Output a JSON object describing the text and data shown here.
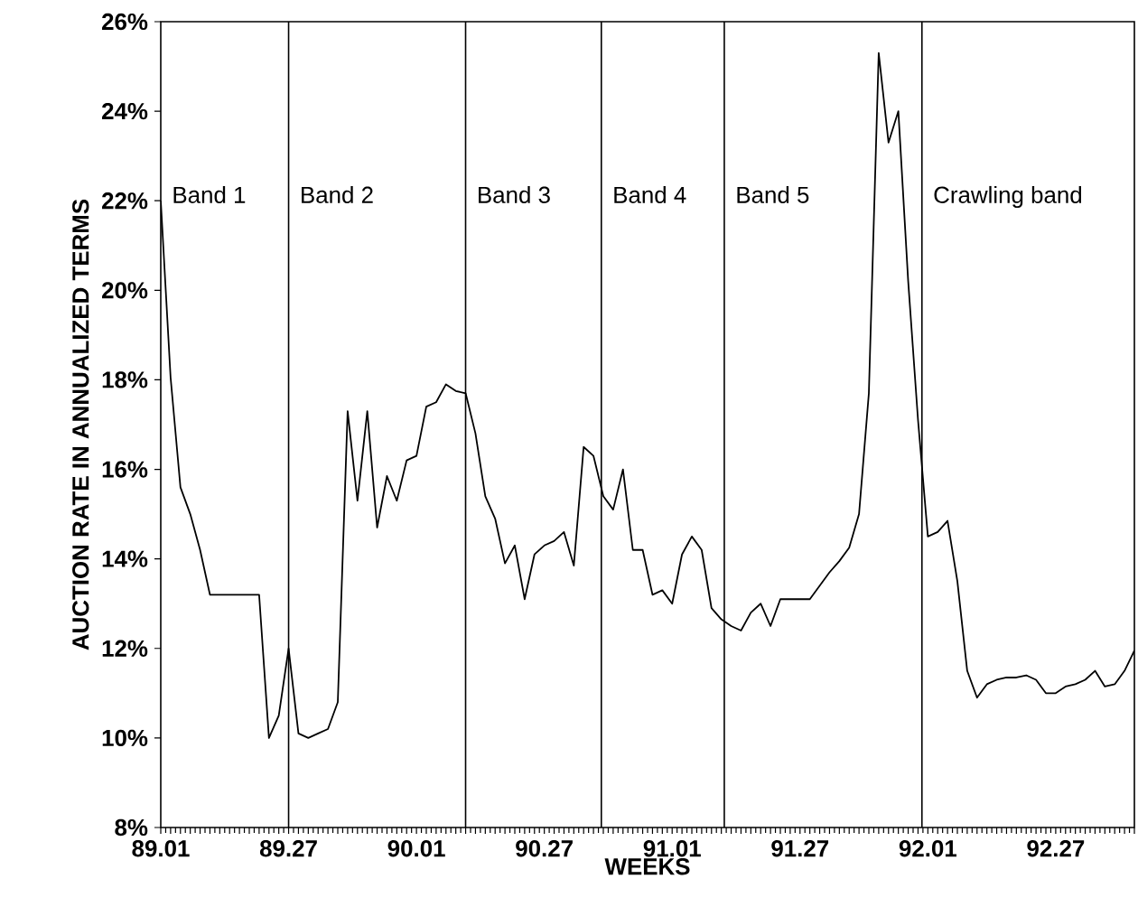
{
  "chart_data": {
    "type": "line",
    "xlabel": "WEEKS",
    "ylabel": "AUCTION RATE IN ANNUALIZED TERMS",
    "categories": [
      "89.01",
      null,
      null,
      null,
      null,
      null,
      null,
      null,
      null,
      null,
      null,
      null,
      null,
      "89.27",
      null,
      null,
      null,
      null,
      null,
      null,
      null,
      null,
      null,
      null,
      null,
      null,
      "90.01",
      null,
      null,
      null,
      null,
      null,
      null,
      null,
      null,
      null,
      null,
      null,
      null,
      "90.27",
      null,
      null,
      null,
      null,
      null,
      null,
      null,
      null,
      null,
      null,
      null,
      null,
      "91.01",
      null,
      null,
      null,
      null,
      null,
      null,
      null,
      null,
      null,
      null,
      null,
      null,
      "91.27",
      null,
      null,
      null,
      null,
      null,
      null,
      null,
      null,
      null,
      null,
      null,
      null,
      "92.01",
      null,
      null,
      null,
      null,
      null,
      null,
      null,
      null,
      null,
      null,
      null,
      null,
      "92.27",
      null,
      null,
      null,
      null,
      null,
      null,
      null,
      null
    ],
    "ylim": [
      8,
      26
    ],
    "yticks": [
      {
        "value": 8,
        "label": "8%"
      },
      {
        "value": 10,
        "label": "10%"
      },
      {
        "value": 12,
        "label": "12%"
      },
      {
        "value": 14,
        "label": "14%"
      },
      {
        "value": 16,
        "label": "16%"
      },
      {
        "value": 18,
        "label": "18%"
      },
      {
        "value": 20,
        "label": "20%"
      },
      {
        "value": 22,
        "label": "22%"
      },
      {
        "value": 24,
        "label": "24%"
      },
      {
        "value": 26,
        "label": "26%"
      }
    ],
    "annotations": [
      "Band 1",
      "Band 2",
      "Band 3",
      "Band 4",
      "Band 5",
      "Crawling band"
    ],
    "series": [
      {
        "color": "#000000",
        "values": [
          22.0,
          18.05,
          15.6,
          15.0,
          14.2,
          13.2,
          13.2,
          13.2,
          13.2,
          13.2,
          13.2,
          10.0,
          10.5,
          12.0,
          10.1,
          10.0,
          10.1,
          10.2,
          10.8,
          17.3,
          15.3,
          17.3,
          14.7,
          15.85,
          15.3,
          16.2,
          16.3,
          17.4,
          17.5,
          17.9,
          17.75,
          17.7,
          16.8,
          15.4,
          14.9,
          13.9,
          14.3,
          13.1,
          14.1,
          14.3,
          14.4,
          14.6,
          13.85,
          16.5,
          16.3,
          15.4,
          15.1,
          16.0,
          14.2,
          14.2,
          13.2,
          13.3,
          13.0,
          14.1,
          14.5,
          14.2,
          12.9,
          12.65,
          12.5,
          12.4,
          12.8,
          13.0,
          12.5,
          13.1,
          13.1,
          13.1,
          13.1,
          13.4,
          13.7,
          13.95,
          14.25,
          15.0,
          17.7,
          25.3,
          23.3,
          24.0,
          20.2,
          17.1,
          14.5,
          14.6,
          14.85,
          13.5,
          11.5,
          10.9,
          11.2,
          11.3,
          11.35,
          11.35,
          11.4,
          11.3,
          11.0,
          11.0,
          11.15,
          11.2,
          11.3,
          11.5,
          11.15,
          11.2,
          11.5,
          11.95
        ]
      }
    ]
  }
}
